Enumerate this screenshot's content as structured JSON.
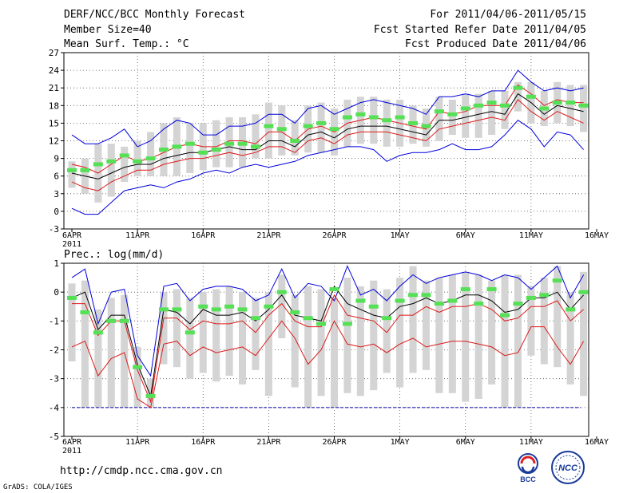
{
  "header": {
    "title": "DERF/NCC/BCC Monthly Forecast",
    "member_size": "Member Size=40",
    "variable": "Mean Surf. Temp.: °C",
    "period": "For 2011/04/06-2011/05/15",
    "fcst_start": "Fcst Started Refer Date 2011/04/05",
    "fcst_produced": "Fcst Produced Date 2011/04/06"
  },
  "footer": {
    "url": "http://cmdp.ncc.cma.gov.cn",
    "credit": "GrADS: COLA/IGES",
    "logo_left": "BCC",
    "logo_right": "NCC"
  },
  "colors": {
    "ensemble_mean": "#000000",
    "extreme_lines": "#0000dd",
    "spread_lines": "#dd1a1a",
    "bars": "#d4d4d4",
    "median": "#55e055",
    "floor": "#0000aa",
    "grid": "#555555"
  },
  "chart_data": [
    {
      "type": "line",
      "title": "Mean Surf. Temp.: °C",
      "x_ticks": [
        "6APR",
        "11APR",
        "16APR",
        "21APR",
        "26APR",
        "1MAY",
        "6MAY",
        "11MAY",
        "16MAY"
      ],
      "x_sublabel": "2011",
      "y_ticks": [
        27,
        24,
        21,
        18,
        15,
        12,
        9,
        6,
        3,
        0,
        -3
      ],
      "ylim": [
        -3,
        27
      ],
      "days": 40,
      "grid": true,
      "series": [
        {
          "name": "max",
          "role": "blue",
          "values": [
            13,
            11.5,
            11.5,
            12.5,
            14,
            11,
            12,
            14,
            15.5,
            15,
            13,
            13,
            14.5,
            14.5,
            15,
            16.5,
            16.5,
            15,
            17.5,
            18,
            16.5,
            17.5,
            18.5,
            19,
            18.5,
            18,
            17.5,
            16.5,
            19.5,
            19.5,
            20,
            19.5,
            20.5,
            20.5,
            24,
            22,
            20.5,
            21,
            20.5,
            21
          ]
        },
        {
          "name": "p75",
          "role": "red",
          "values": [
            8,
            7.5,
            6.5,
            8,
            9.5,
            8.5,
            9,
            10,
            11,
            11.5,
            11,
            11,
            12,
            12,
            11.5,
            13.5,
            13.5,
            12,
            14,
            14.5,
            13.5,
            15,
            15.5,
            16,
            15.5,
            15,
            14.5,
            14,
            17,
            16.5,
            17,
            18,
            18,
            18,
            21.5,
            20,
            18,
            19,
            18.5,
            18.5
          ]
        },
        {
          "name": "mean",
          "role": "black",
          "values": [
            6.5,
            6,
            5.5,
            6.5,
            7.5,
            8,
            8,
            9,
            9.5,
            10,
            10,
            10.5,
            11,
            10.5,
            10.5,
            12,
            12,
            11,
            13,
            13.5,
            12.5,
            14,
            14.5,
            14.5,
            14.5,
            14,
            13.5,
            13,
            15.5,
            15.5,
            16,
            16.5,
            17,
            16.5,
            20,
            18.5,
            16.5,
            18,
            17.5,
            17
          ]
        },
        {
          "name": "p25",
          "role": "red",
          "values": [
            5,
            4,
            3.5,
            5,
            6,
            7,
            7,
            8,
            8.5,
            9,
            9,
            9.5,
            10,
            9.5,
            10,
            11,
            11,
            10,
            12,
            12.5,
            11.5,
            13,
            13.5,
            13.5,
            13.5,
            13,
            12.5,
            12,
            14,
            14.5,
            15,
            15.5,
            16,
            15.5,
            19,
            17,
            15.5,
            17,
            16,
            15
          ]
        },
        {
          "name": "min",
          "role": "blue",
          "values": [
            0.5,
            -0.5,
            -0.5,
            1.5,
            3.5,
            4,
            4.5,
            4,
            5,
            5.5,
            6.5,
            7,
            6.5,
            7.5,
            8,
            7.5,
            8,
            8.5,
            9.5,
            10,
            10.5,
            11,
            11,
            10.5,
            8.5,
            9.5,
            10,
            10,
            10.5,
            11.5,
            10.5,
            10.5,
            11,
            13,
            15.5,
            14,
            11,
            13.5,
            13,
            10.5
          ]
        },
        {
          "name": "median",
          "role": "green-dash",
          "values": [
            7,
            7,
            8,
            8.5,
            9.5,
            8.5,
            9,
            10.5,
            11,
            11.5,
            10,
            10.5,
            11.5,
            11.5,
            11,
            14.5,
            14,
            12,
            14.5,
            15,
            14,
            16,
            16.5,
            16,
            15.5,
            16,
            15,
            14.5,
            17,
            16.5,
            17.5,
            18,
            18.5,
            18,
            21,
            19.5,
            17.5,
            18.5,
            18.5,
            18
          ]
        },
        {
          "name": "bar_top",
          "role": "bar",
          "values": [
            8.5,
            9,
            11.5,
            11.5,
            11,
            12,
            13.5,
            15,
            16,
            15,
            15,
            15.5,
            16,
            16,
            16.5,
            18.5,
            18,
            15.5,
            18,
            18.5,
            17.5,
            19,
            19.5,
            19.5,
            19,
            19,
            18,
            17.5,
            19.5,
            19,
            20,
            20,
            20.5,
            20.5,
            22,
            22,
            20.5,
            22,
            21.5,
            21.5
          ]
        },
        {
          "name": "bar_bottom",
          "role": "bar",
          "values": [
            4,
            3,
            1.5,
            2.5,
            5,
            6,
            6,
            6,
            6,
            6.5,
            7,
            7.5,
            7.5,
            7.5,
            9,
            9,
            9.5,
            9.5,
            10,
            10,
            9.5,
            11,
            11.5,
            11.5,
            11,
            11,
            11.5,
            11,
            12,
            13,
            12.5,
            12.5,
            13,
            14,
            17,
            15,
            14.5,
            15,
            14.5,
            13.5
          ]
        }
      ]
    },
    {
      "type": "line",
      "title": "Prec.: log(mm/d)",
      "x_ticks": [
        "6APR",
        "11APR",
        "16APR",
        "21APR",
        "26APR",
        "1MAY",
        "6MAY",
        "11MAY",
        "16MAY"
      ],
      "x_sublabel": "2011",
      "y_ticks": [
        1,
        0,
        -1,
        -2,
        -3,
        -4,
        -5
      ],
      "ylim": [
        -5,
        1
      ],
      "days": 40,
      "grid": true,
      "floor_value": -4,
      "series": [
        {
          "name": "max",
          "role": "blue",
          "values": [
            0.5,
            0.8,
            -1.1,
            0,
            0.1,
            -2.2,
            -2.9,
            0.2,
            0.3,
            -0.3,
            0.1,
            0.2,
            0.2,
            0.1,
            -0.3,
            -0.1,
            0.8,
            -0.2,
            0.3,
            0.2,
            -0.3,
            0.9,
            -0.1,
            0.1,
            -0.3,
            0.2,
            0.6,
            0.3,
            0.5,
            0.6,
            0.7,
            0.6,
            0.4,
            0.6,
            0.5,
            0.1,
            0.5,
            0.9,
            -0.2,
            0.6
          ]
        },
        {
          "name": "p75",
          "role": "black",
          "values": [
            -0.2,
            0,
            -1.3,
            -0.8,
            -0.8,
            -2.5,
            -3.6,
            -0.6,
            -0.7,
            -1.1,
            -0.6,
            -0.8,
            -0.8,
            -0.7,
            -1.0,
            -0.6,
            -0.1,
            -0.8,
            -0.9,
            -1.0,
            0.2,
            -0.4,
            -0.6,
            -0.8,
            -0.9,
            -0.5,
            -0.4,
            -0.2,
            -0.4,
            -0.3,
            -0.1,
            -0.1,
            -0.3,
            -0.7,
            -0.6,
            -0.2,
            -0.2,
            0,
            -0.6,
            -0.1
          ]
        },
        {
          "name": "p50",
          "role": "red",
          "values": [
            -0.4,
            -0.4,
            -1.5,
            -1.0,
            -1.0,
            -2.7,
            -3.8,
            -0.9,
            -0.9,
            -1.3,
            -1.0,
            -1.1,
            -1.1,
            -1.0,
            -1.4,
            -0.8,
            -0.4,
            -1.0,
            -1.2,
            -1.2,
            -0.1,
            -0.8,
            -0.9,
            -1.0,
            -1.4,
            -0.8,
            -0.8,
            -0.5,
            -0.7,
            -0.5,
            -0.5,
            -0.4,
            -0.6,
            -1.0,
            -0.9,
            -0.5,
            -0.5,
            -0.3,
            -1.0,
            -0.6
          ]
        },
        {
          "name": "p25",
          "role": "red",
          "values": [
            -1.9,
            -1.7,
            -2.9,
            -2.3,
            -2.1,
            -3.7,
            -4.0,
            -1.8,
            -1.7,
            -2.2,
            -1.9,
            -2.1,
            -2.0,
            -1.9,
            -2.2,
            -1.6,
            -1.0,
            -1.6,
            -2.5,
            -2.0,
            -1.0,
            -1.8,
            -1.9,
            -1.8,
            -2.1,
            -1.8,
            -1.6,
            -1.9,
            -1.8,
            -1.7,
            -1.7,
            -1.8,
            -1.9,
            -2.2,
            -2.1,
            -1.2,
            -1.2,
            -1.9,
            -2.5,
            -1.7
          ]
        },
        {
          "name": "median",
          "role": "green-dash",
          "values": [
            -0.2,
            -0.7,
            -1.4,
            -1.0,
            -1.0,
            -2.6,
            -3.6,
            -0.6,
            -0.6,
            -1.4,
            -0.5,
            -0.6,
            -0.5,
            -0.6,
            -0.9,
            -0.5,
            0,
            -0.7,
            -0.9,
            -1.1,
            0.1,
            -1.1,
            -0.3,
            -0.5,
            -0.9,
            -0.3,
            -0.1,
            -0.1,
            -0.4,
            -0.3,
            0.1,
            -0.4,
            0.1,
            -0.8,
            -0.4,
            -0.2,
            -0.1,
            0.4,
            -0.6,
            0
          ]
        },
        {
          "name": "bar_top",
          "role": "bar",
          "values": [
            0.3,
            0.4,
            -0.6,
            -0.2,
            -0.1,
            -1.9,
            -3.0,
            0,
            0.1,
            -0.2,
            0,
            0.1,
            0.2,
            0,
            -0.2,
            0,
            0.6,
            -0.1,
            0.2,
            0.1,
            -0.2,
            0.5,
            0.2,
            0.4,
            0.1,
            0.5,
            0.9,
            0.4,
            0.5,
            0.6,
            0.7,
            0.6,
            0.4,
            0.6,
            0.6,
            0.2,
            0.5,
            0.9,
            0,
            0.7
          ]
        },
        {
          "name": "bar_bottom",
          "role": "bar",
          "values": [
            -2.4,
            -4,
            -4,
            -4,
            -4,
            -4,
            -4,
            -2.5,
            -2.6,
            -3.0,
            -2.8,
            -3.1,
            -2.9,
            -3.2,
            -2.7,
            -3.6,
            -1.6,
            -3.3,
            -4,
            -3.6,
            -4,
            -3.5,
            -3.6,
            -3.4,
            -2.8,
            -3.3,
            -2.8,
            -2.7,
            -3.5,
            -3.5,
            -3.8,
            -3.7,
            -3.2,
            -4,
            -4,
            -2.2,
            -2.5,
            -2.6,
            -3.2,
            -3.6
          ]
        }
      ]
    }
  ]
}
